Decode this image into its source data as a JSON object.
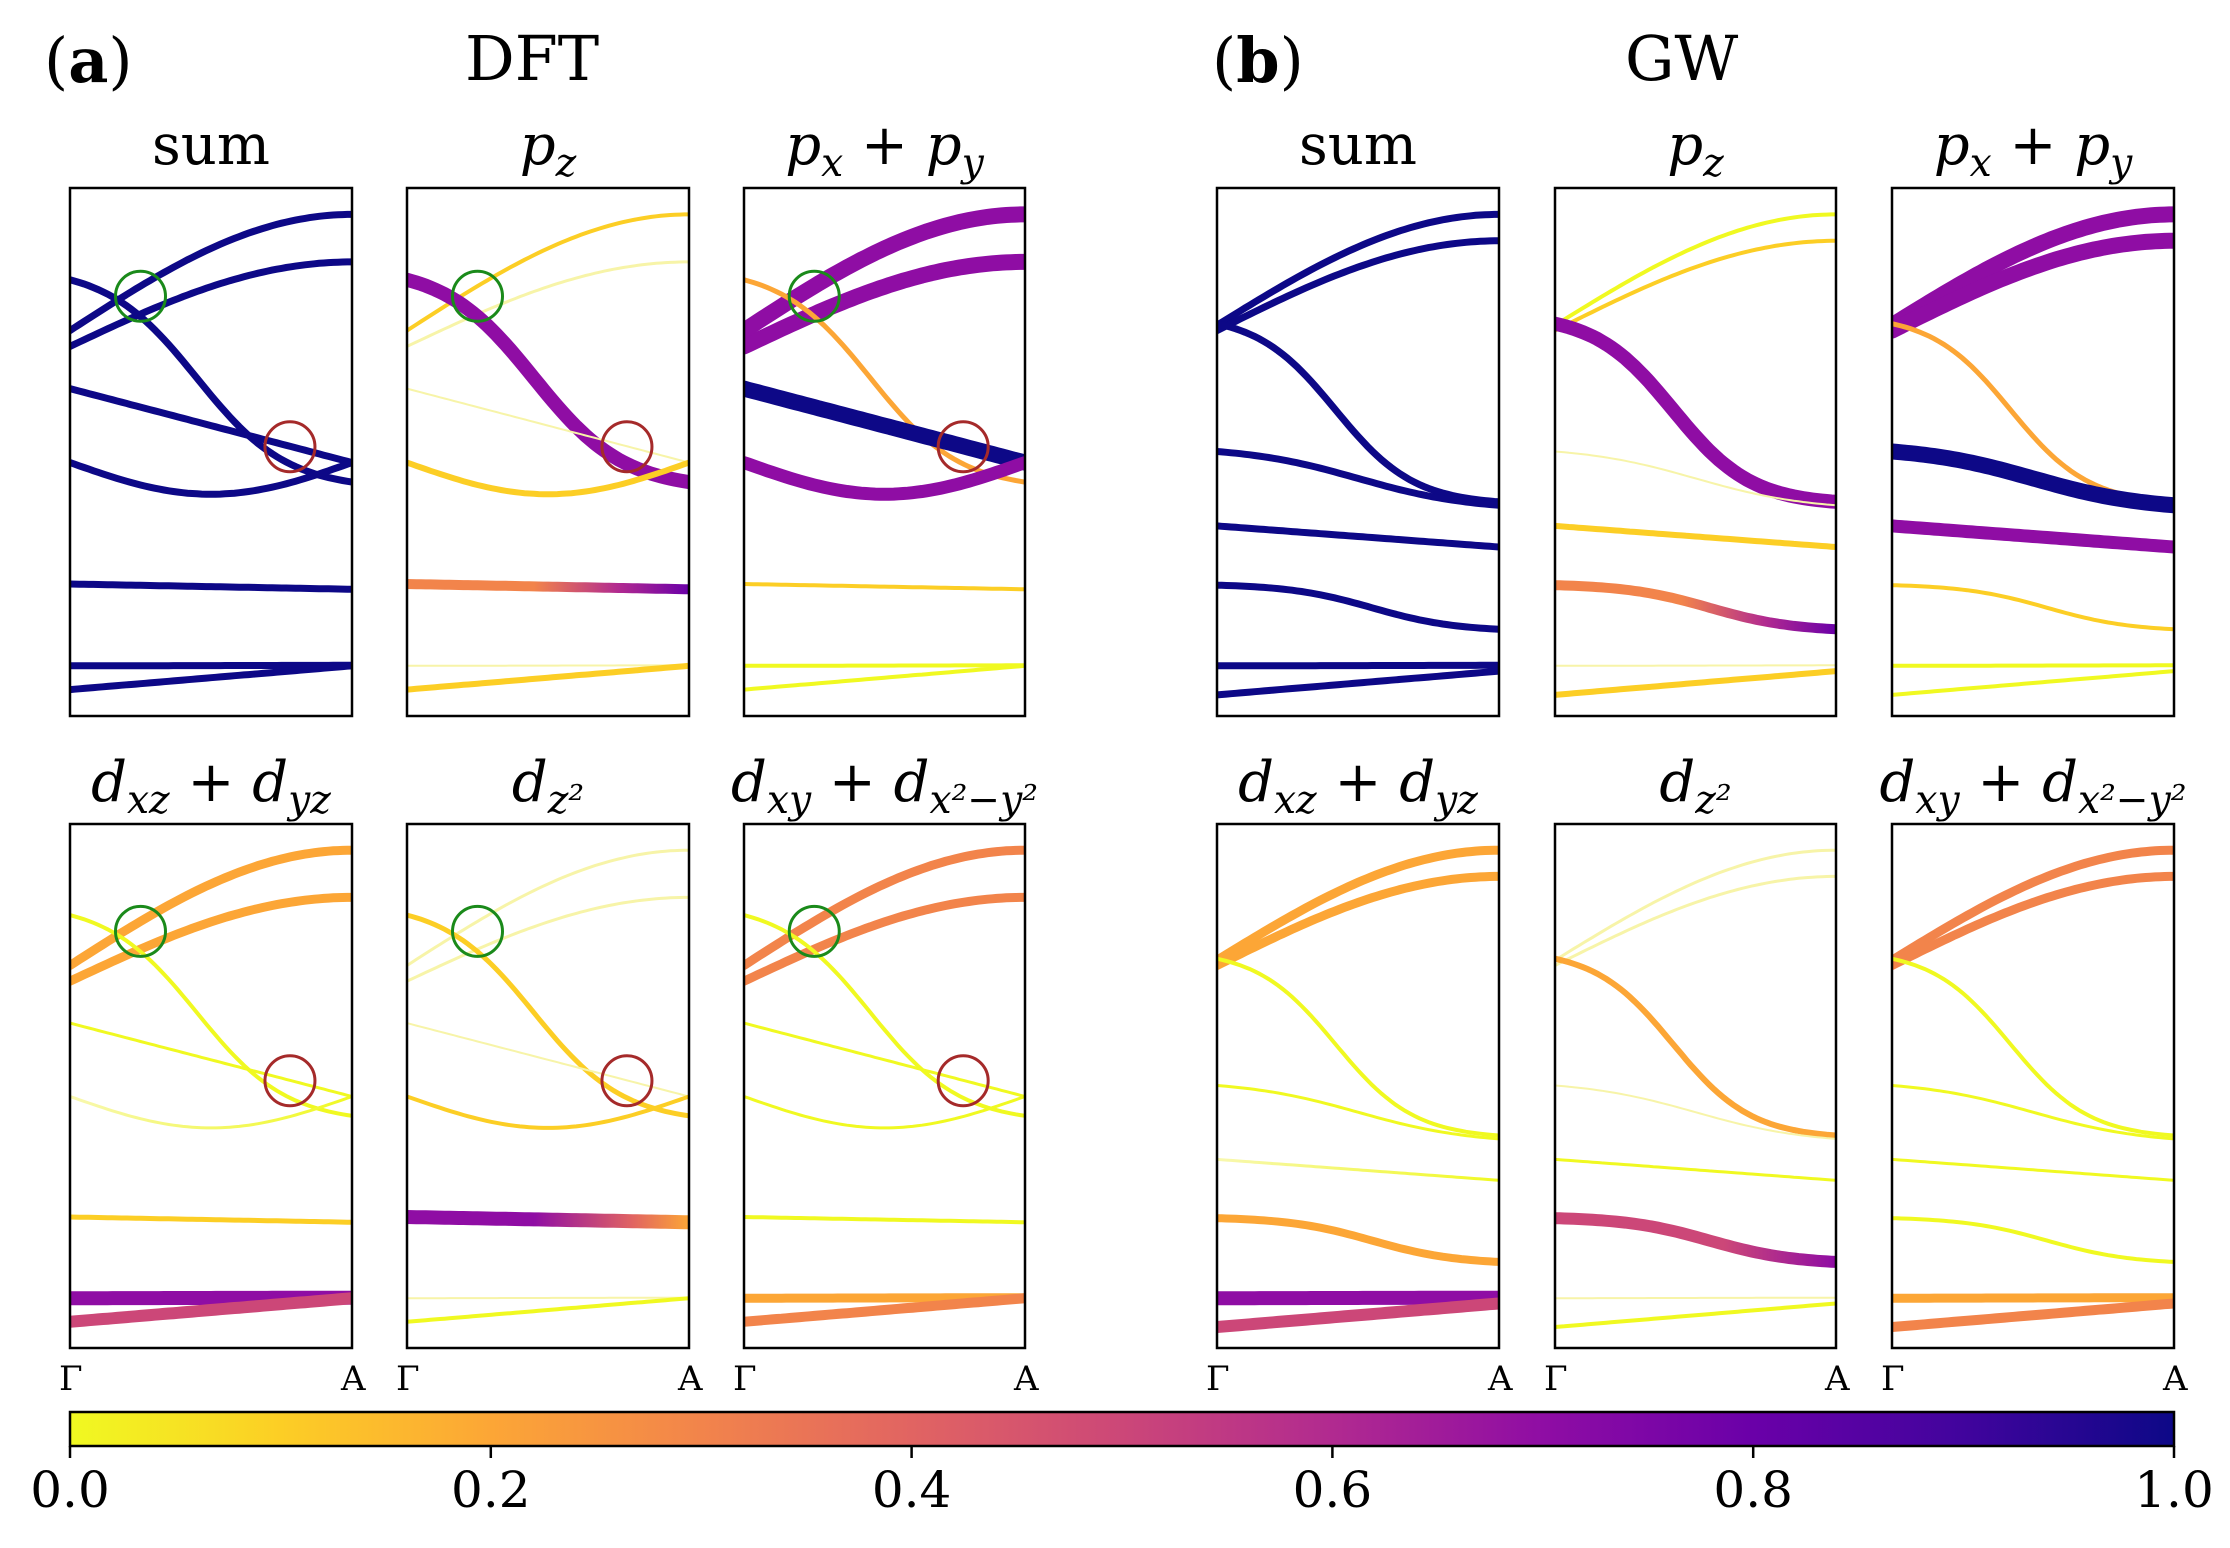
{
  "figure": {
    "panel_a": {
      "letter": "a",
      "method": "DFT"
    },
    "panel_b": {
      "letter": "b",
      "method": "GW"
    },
    "subplot_titles": [
      "sum",
      "pz",
      "px + py",
      "dxz + dyz",
      "dz2",
      "dxy + dx2-y2"
    ],
    "k_labels": [
      "Γ",
      "A"
    ]
  },
  "colorbar": {
    "colormap": "plasma_r",
    "ticks": [
      "0.0",
      "0.2",
      "0.4",
      "0.6",
      "0.8",
      "1.0"
    ],
    "range": [
      0,
      1
    ]
  },
  "markers": {
    "crossing_green": "#1a8a1a",
    "crossing_red": "#a52a2a"
  },
  "chart_data": {
    "type": "line",
    "description": "Orbital-projected band structures along Gamma-A; color and width encode orbital weight (0-1)",
    "x_ticks": [
      "Γ",
      "A"
    ],
    "panels": [
      {
        "method": "DFT",
        "orbital": "sum",
        "weight": 1.0
      },
      {
        "method": "DFT",
        "orbital": "pz"
      },
      {
        "method": "DFT",
        "orbital": "px + py"
      },
      {
        "method": "DFT",
        "orbital": "dxz + dyz"
      },
      {
        "method": "DFT",
        "orbital": "dz2"
      },
      {
        "method": "DFT",
        "orbital": "dxy + dx2-y2"
      },
      {
        "method": "GW",
        "orbital": "sum",
        "weight": 1.0
      },
      {
        "method": "GW",
        "orbital": "pz"
      },
      {
        "method": "GW",
        "orbital": "px + py"
      },
      {
        "method": "GW",
        "orbital": "dxz + dyz"
      },
      {
        "method": "GW",
        "orbital": "dz2"
      },
      {
        "method": "GW",
        "orbital": "dxy + dx2-y2"
      }
    ]
  }
}
